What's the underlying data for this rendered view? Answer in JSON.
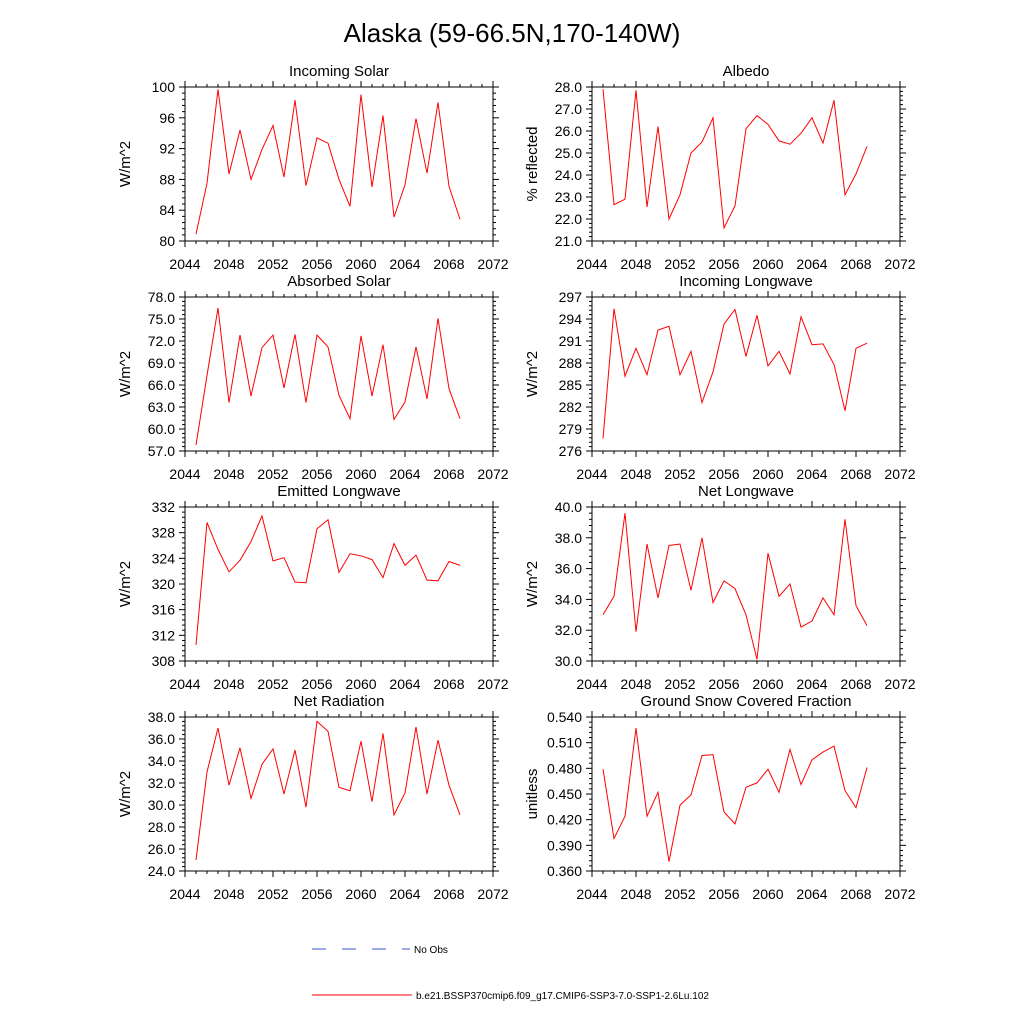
{
  "title": "Alaska (59-66.5N,170-140W)",
  "colors": {
    "model": "#ff0000",
    "obs": "#3355cc"
  },
  "legend": {
    "obs_label": "No Obs",
    "model_label": "b.e21.BSSP370cmip6.f09_g17.CMIP6-SSP3-7.0-SSP1-2.6Lu.102"
  },
  "chart_data": [
    {
      "type": "line",
      "title": "Incoming Solar",
      "ylabel": "W/m^2",
      "xlim": [
        2044,
        2072
      ],
      "ylim": [
        80,
        100
      ],
      "xticks": [
        2044,
        2048,
        2052,
        2056,
        2060,
        2064,
        2068,
        2072
      ],
      "yticks": [
        "80",
        "84",
        "88",
        "92",
        "96",
        "100"
      ],
      "yticks_values": [
        80,
        84,
        88,
        92,
        96,
        100
      ],
      "x": [
        2045,
        2046,
        2047,
        2048,
        2049,
        2050,
        2051,
        2052,
        2053,
        2054,
        2055,
        2056,
        2057,
        2058,
        2059,
        2060,
        2061,
        2062,
        2063,
        2064,
        2065,
        2066,
        2067,
        2068,
        2069
      ],
      "values": [
        80.9,
        87.5,
        99.7,
        88.7,
        94.4,
        88.0,
        91.9,
        95.0,
        88.3,
        98.3,
        87.2,
        93.4,
        92.7,
        88.0,
        84.5,
        99.0,
        87.0,
        96.3,
        83.1,
        87.3,
        95.9,
        88.8,
        98.0,
        87.1,
        82.8
      ]
    },
    {
      "type": "line",
      "title": "Albedo",
      "ylabel": "% reflected",
      "xlim": [
        2044,
        2072
      ],
      "ylim": [
        21.0,
        28.0
      ],
      "xticks": [
        2044,
        2048,
        2052,
        2056,
        2060,
        2064,
        2068,
        2072
      ],
      "yticks": [
        "21.0",
        "22.0",
        "23.0",
        "24.0",
        "25.0",
        "26.0",
        "27.0",
        "28.0"
      ],
      "yticks_values": [
        21,
        22,
        23,
        24,
        25,
        26,
        27,
        28
      ],
      "x": [
        2045,
        2046,
        2047,
        2048,
        2049,
        2050,
        2051,
        2052,
        2053,
        2054,
        2055,
        2056,
        2057,
        2058,
        2059,
        2060,
        2061,
        2062,
        2063,
        2064,
        2065,
        2066,
        2067,
        2068,
        2069
      ],
      "values": [
        27.9,
        22.65,
        22.9,
        27.85,
        22.55,
        26.2,
        22.0,
        23.1,
        25.0,
        25.5,
        26.6,
        21.6,
        22.6,
        26.1,
        26.7,
        26.3,
        25.55,
        25.4,
        25.9,
        26.6,
        25.45,
        27.4,
        23.1,
        24.05,
        25.3
      ]
    },
    {
      "type": "line",
      "title": "Absorbed Solar",
      "ylabel": "W/m^2",
      "xlim": [
        2044,
        2072
      ],
      "ylim": [
        57.0,
        78.0
      ],
      "xticks": [
        2044,
        2048,
        2052,
        2056,
        2060,
        2064,
        2068,
        2072
      ],
      "yticks": [
        "57.0",
        "60.0",
        "63.0",
        "66.0",
        "69.0",
        "72.0",
        "75.0",
        "78.0"
      ],
      "yticks_values": [
        57,
        60,
        63,
        66,
        69,
        72,
        75,
        78
      ],
      "x": [
        2045,
        2046,
        2047,
        2048,
        2049,
        2050,
        2051,
        2052,
        2053,
        2054,
        2055,
        2056,
        2057,
        2058,
        2059,
        2060,
        2061,
        2062,
        2063,
        2064,
        2065,
        2066,
        2067,
        2068,
        2069
      ],
      "values": [
        57.8,
        67.3,
        76.5,
        63.6,
        72.8,
        64.5,
        71.1,
        72.8,
        65.6,
        72.9,
        63.6,
        72.8,
        71.2,
        64.6,
        61.4,
        72.7,
        64.5,
        71.5,
        61.3,
        63.7,
        71.2,
        64.1,
        75.1,
        65.5,
        61.4
      ]
    },
    {
      "type": "line",
      "title": "Incoming Longwave",
      "ylabel": "W/m^2",
      "xlim": [
        2044,
        2072
      ],
      "ylim": [
        276,
        297
      ],
      "xticks": [
        2044,
        2048,
        2052,
        2056,
        2060,
        2064,
        2068,
        2072
      ],
      "yticks": [
        "276",
        "279",
        "282",
        "285",
        "288",
        "291",
        "294",
        "297"
      ],
      "yticks_values": [
        276,
        279,
        282,
        285,
        288,
        291,
        294,
        297
      ],
      "x": [
        2045,
        2046,
        2047,
        2048,
        2049,
        2050,
        2051,
        2052,
        2053,
        2054,
        2055,
        2056,
        2057,
        2058,
        2059,
        2060,
        2061,
        2062,
        2063,
        2064,
        2065,
        2066,
        2067,
        2068,
        2069
      ],
      "values": [
        277.7,
        295.4,
        286.2,
        290.0,
        286.4,
        292.5,
        293.0,
        286.4,
        289.6,
        282.6,
        286.8,
        293.3,
        295.3,
        288.9,
        294.5,
        287.6,
        289.6,
        286.5,
        294.3,
        290.5,
        290.6,
        287.8,
        281.5,
        290.0,
        290.7
      ]
    },
    {
      "type": "line",
      "title": "Emitted Longwave",
      "ylabel": "W/m^2",
      "xlim": [
        2044,
        2072
      ],
      "ylim": [
        308,
        332
      ],
      "xticks": [
        2044,
        2048,
        2052,
        2056,
        2060,
        2064,
        2068,
        2072
      ],
      "yticks": [
        "308",
        "312",
        "316",
        "320",
        "324",
        "328",
        "332"
      ],
      "yticks_values": [
        308,
        312,
        316,
        320,
        324,
        328,
        332
      ],
      "x": [
        2045,
        2046,
        2047,
        2048,
        2049,
        2050,
        2051,
        2052,
        2053,
        2054,
        2055,
        2056,
        2057,
        2058,
        2059,
        2060,
        2061,
        2062,
        2063,
        2064,
        2065,
        2066,
        2067,
        2068,
        2069
      ],
      "values": [
        310.5,
        329.6,
        325.4,
        321.9,
        323.7,
        326.6,
        330.6,
        323.6,
        324.1,
        320.3,
        320.2,
        328.6,
        330.0,
        321.8,
        324.7,
        324.4,
        323.8,
        321.0,
        326.3,
        322.9,
        324.5,
        320.6,
        320.5,
        323.5,
        322.9
      ]
    },
    {
      "type": "line",
      "title": "Net Longwave",
      "ylabel": "W/m^2",
      "xlim": [
        2044,
        2072
      ],
      "ylim": [
        30.0,
        40.0
      ],
      "xticks": [
        2044,
        2048,
        2052,
        2056,
        2060,
        2064,
        2068,
        2072
      ],
      "yticks": [
        "30.0",
        "32.0",
        "34.0",
        "36.0",
        "38.0",
        "40.0"
      ],
      "yticks_values": [
        30,
        32,
        34,
        36,
        38,
        40
      ],
      "x": [
        2045,
        2046,
        2047,
        2048,
        2049,
        2050,
        2051,
        2052,
        2053,
        2054,
        2055,
        2056,
        2057,
        2058,
        2059,
        2060,
        2061,
        2062,
        2063,
        2064,
        2065,
        2066,
        2067,
        2068,
        2069
      ],
      "values": [
        33.0,
        34.2,
        39.6,
        31.9,
        37.6,
        34.1,
        37.5,
        37.6,
        34.6,
        38.0,
        33.8,
        35.2,
        34.7,
        33.0,
        30.1,
        37.0,
        34.2,
        35.0,
        32.2,
        32.6,
        34.1,
        33.0,
        39.2,
        33.6,
        32.3
      ]
    },
    {
      "type": "line",
      "title": "Net Radiation",
      "ylabel": "W/m^2",
      "xlim": [
        2044,
        2072
      ],
      "ylim": [
        24.0,
        38.0
      ],
      "xticks": [
        2044,
        2048,
        2052,
        2056,
        2060,
        2064,
        2068,
        2072
      ],
      "yticks": [
        "24.0",
        "26.0",
        "28.0",
        "30.0",
        "32.0",
        "34.0",
        "36.0",
        "38.0"
      ],
      "yticks_values": [
        24,
        26,
        28,
        30,
        32,
        34,
        36,
        38
      ],
      "x": [
        2045,
        2046,
        2047,
        2048,
        2049,
        2050,
        2051,
        2052,
        2053,
        2054,
        2055,
        2056,
        2057,
        2058,
        2059,
        2060,
        2061,
        2062,
        2063,
        2064,
        2065,
        2066,
        2067,
        2068,
        2069
      ],
      "values": [
        25.0,
        33.0,
        37.0,
        31.8,
        35.2,
        30.6,
        33.7,
        35.1,
        31.0,
        35.0,
        29.8,
        37.6,
        36.7,
        31.6,
        31.3,
        35.8,
        30.3,
        36.5,
        29.1,
        31.1,
        37.1,
        31.0,
        35.9,
        31.8,
        29.1
      ]
    },
    {
      "type": "line",
      "title": "Ground Snow Covered Fraction",
      "ylabel": "unitless",
      "xlim": [
        2044,
        2072
      ],
      "ylim": [
        0.36,
        0.54
      ],
      "xticks": [
        2044,
        2048,
        2052,
        2056,
        2060,
        2064,
        2068,
        2072
      ],
      "yticks": [
        "0.360",
        "0.390",
        "0.420",
        "0.450",
        "0.480",
        "0.510",
        "0.540"
      ],
      "yticks_values": [
        0.36,
        0.39,
        0.42,
        0.45,
        0.48,
        0.51,
        0.54
      ],
      "x": [
        2045,
        2046,
        2047,
        2048,
        2049,
        2050,
        2051,
        2052,
        2053,
        2054,
        2055,
        2056,
        2057,
        2058,
        2059,
        2060,
        2061,
        2062,
        2063,
        2064,
        2065,
        2066,
        2067,
        2068,
        2069
      ],
      "values": [
        0.479,
        0.398,
        0.424,
        0.527,
        0.424,
        0.452,
        0.371,
        0.437,
        0.449,
        0.495,
        0.496,
        0.429,
        0.415,
        0.458,
        0.463,
        0.479,
        0.452,
        0.502,
        0.461,
        0.49,
        0.499,
        0.506,
        0.454,
        0.434,
        0.481
      ]
    }
  ]
}
